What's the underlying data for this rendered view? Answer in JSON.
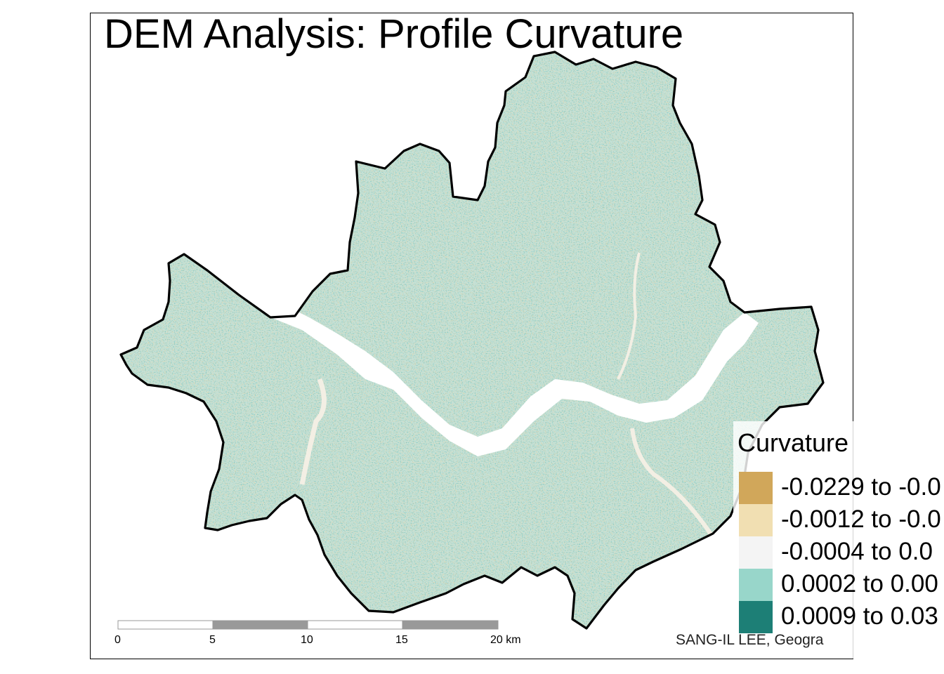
{
  "title": "DEM Analysis: Profile Curvature",
  "legend": {
    "title": "Curvature",
    "items": [
      {
        "label": "-0.0229 to -0.0",
        "color": "#d1a75a"
      },
      {
        "label": "-0.0012 to -0.0",
        "color": "#f1dfb2"
      },
      {
        "label": "-0.0004 to 0.0",
        "color": "#f4f4f4"
      },
      {
        "label": "0.0002 to 0.00",
        "color": "#98d6ca"
      },
      {
        "label": "0.0009 to 0.03",
        "color": "#1d7f76"
      }
    ]
  },
  "scale_bar": {
    "ticks": [
      "0",
      "5",
      "10",
      "15",
      "20 km"
    ]
  },
  "credit": "SANG-IL LEE, Geogra",
  "map_colors": {
    "land_base": "#c6e1d6",
    "river": "#ffffff",
    "boundary": "#000000"
  }
}
